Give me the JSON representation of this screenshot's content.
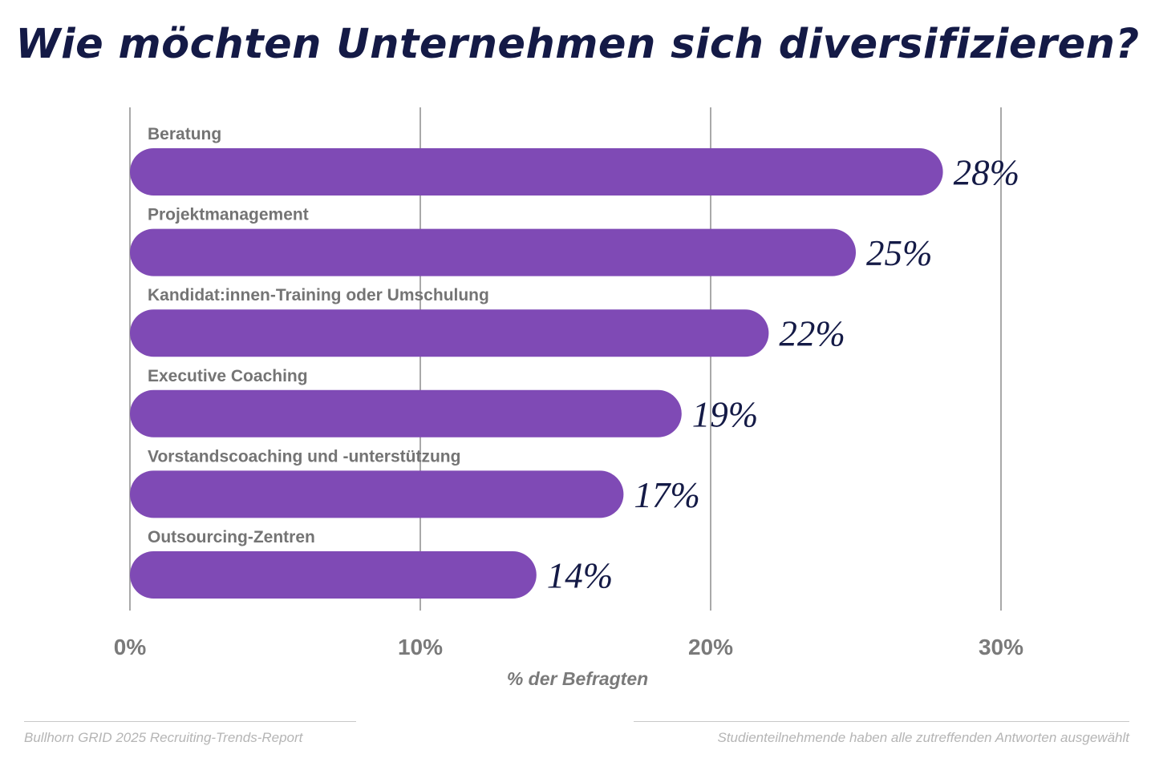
{
  "chart_data": {
    "type": "bar",
    "orientation": "horizontal",
    "title": "Wie möchten Unternehmen sich diversifizieren?",
    "categories": [
      "Beratung",
      "Projektmanagement",
      "Kandidat:innen-Training oder Umschulung",
      "Executive Coaching",
      "Vorstandscoaching und -unterstützung",
      "Outsourcing-Zentren"
    ],
    "values": [
      28,
      25,
      22,
      19,
      17,
      14
    ],
    "value_labels": [
      "28%",
      "25%",
      "22%",
      "19%",
      "17%",
      "14%"
    ],
    "xlim": [
      0,
      30
    ],
    "xticks": [
      0,
      10,
      20,
      30
    ],
    "xtick_labels": [
      "0%",
      "10%",
      "20%",
      "30%"
    ],
    "xlabel": "% der Befragten",
    "ylabel": "",
    "grid": true,
    "colors": {
      "bar": "#7f4ab5",
      "title": "#141a46",
      "value_label": "#141a46",
      "category_label": "#747474",
      "axis_text": "#7a7a7a",
      "grid": "#a9a9a9"
    }
  },
  "footer": {
    "source": "Bullhorn GRID 2025 Recruiting-Trends-Report",
    "note": "Studienteilnehmende haben alle zutreffenden Antworten ausgewählt"
  }
}
